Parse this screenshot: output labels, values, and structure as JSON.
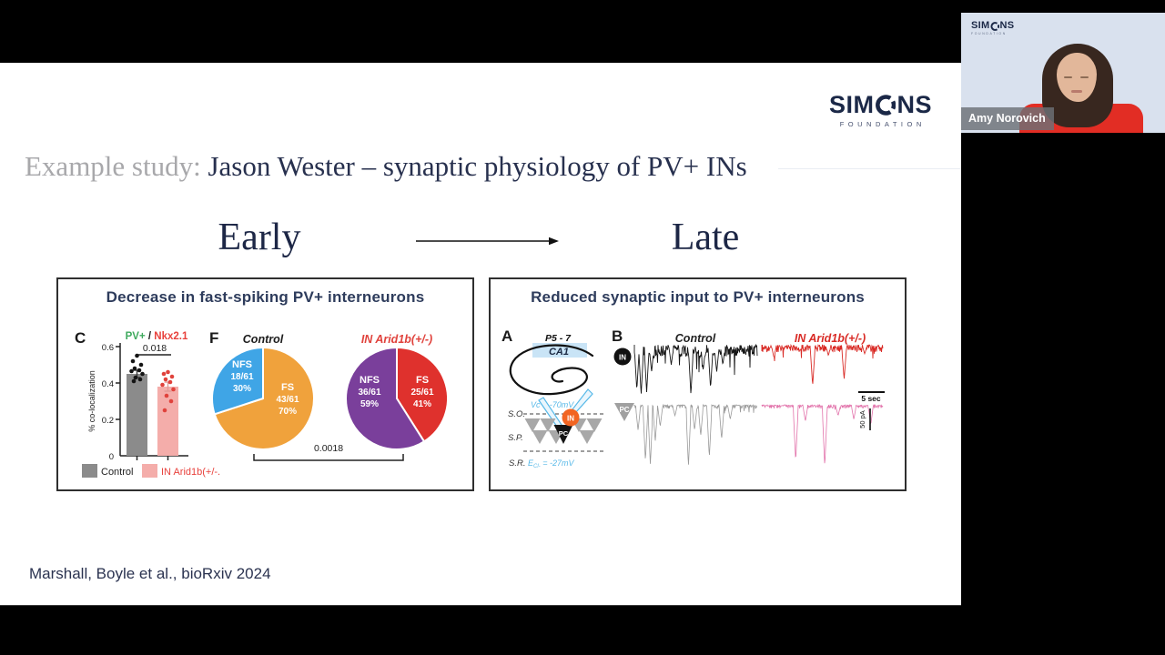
{
  "webcam": {
    "name": "Amy Norovich",
    "logo": {
      "left": "SIM",
      "right": "NS",
      "sub": "FOUNDATION"
    }
  },
  "slide": {
    "logo": {
      "left": "SIM",
      "right": "NS",
      "sub": "FOUNDATION"
    },
    "title": {
      "prefix": "Example study: ",
      "main": "Jason Wester – synaptic physiology of PV+ INs"
    },
    "timeline": {
      "early": "Early",
      "late": "Late"
    },
    "citation": "Marshall, Boyle et al., bioRxiv 2024",
    "left_panel": {
      "title": "Decrease in fast-spiking PV+ interneurons",
      "label_c": "C",
      "label_f": "F"
    },
    "right_panel": {
      "title": "Reduced synaptic input to PV+ interneurons",
      "label_a": "A",
      "label_b": "B",
      "age": "P5 - 7",
      "region": "CA1",
      "layer_so": "S.O.",
      "layer_sp": "S.P.",
      "layer_sr": "S.R.",
      "vc": "Vc = -70mV",
      "ecl_base": "E",
      "ecl_sub": "Cl-",
      "ecl_rest": " = -27mV",
      "in_label": "IN",
      "pc_label": "PC",
      "col_control": "Control",
      "col_arid": "IN Arid1b(+/-)",
      "scale_time": "5 sec",
      "scale_current": "50 pA"
    }
  },
  "chart_data": [
    {
      "id": "colocalization_bar",
      "type": "bar",
      "title_parts": {
        "green": "PV+",
        "sep": " / ",
        "red": "Nkx2.1"
      },
      "categories": [
        "Control",
        "IN Arid1b(+/-."
      ],
      "values": [
        0.45,
        0.38
      ],
      "points": [
        [
          0.55,
          0.52,
          0.5,
          0.48,
          0.47,
          0.465,
          0.45,
          0.43,
          0.42,
          0.41
        ],
        [
          0.46,
          0.45,
          0.435,
          0.42,
          0.405,
          0.39,
          0.365,
          0.33,
          0.3,
          0.25
        ]
      ],
      "sems": [
        0.02,
        0.025
      ],
      "ylabel": "% co-localization",
      "yticks": [
        "0",
        "0.2",
        "0.4",
        "0.6"
      ],
      "ylim": [
        0,
        0.6
      ],
      "p_value": "0.018",
      "bar_colors": [
        "#8b8b8b",
        "#f4adaa"
      ],
      "dot_colors": [
        "#141414",
        "#e0423c"
      ],
      "err_colors": [
        "#3c3c3c",
        "#e09a96"
      ]
    },
    {
      "id": "pie_control",
      "type": "pie",
      "title": "Control",
      "slices": [
        {
          "name": "FS",
          "count": "43/61",
          "pct": "70%",
          "value": 70,
          "color": "#f0a23c"
        },
        {
          "name": "NFS",
          "count": "18/61",
          "pct": "30%",
          "value": 30,
          "color": "#3fa5e6"
        }
      ]
    },
    {
      "id": "pie_arid",
      "type": "pie",
      "title": "IN Arid1b(+/-)",
      "p_value": "0.0018",
      "slices": [
        {
          "name": "FS",
          "count": "25/61",
          "pct": "41%",
          "value": 41,
          "color": "#df312d"
        },
        {
          "name": "NFS",
          "count": "36/61",
          "pct": "59%",
          "value": 59,
          "color": "#7a3f9b"
        }
      ]
    },
    {
      "id": "synaptic_traces",
      "type": "line",
      "rows": [
        {
          "label": "IN"
        },
        {
          "label": "PC"
        }
      ],
      "cols": [
        {
          "label": "Control"
        },
        {
          "label": "IN Arid1b(+/-)"
        }
      ],
      "traces": [
        {
          "row": 0,
          "col": 0,
          "color": "#161616",
          "width": 0.9,
          "noise": 13,
          "density": 0.9,
          "seed": 7,
          "spikes": [
            {
              "t": 0.02,
              "a": 50
            },
            {
              "t": 0.055,
              "a": 55
            },
            {
              "t": 0.1,
              "a": 52
            },
            {
              "t": 0.14,
              "a": 30
            },
            {
              "t": 0.3,
              "a": 22
            },
            {
              "t": 0.46,
              "a": 55
            },
            {
              "t": 0.56,
              "a": 28
            },
            {
              "t": 0.62,
              "a": 48
            },
            {
              "t": 0.67,
              "a": 30
            },
            {
              "t": 0.72,
              "a": 22
            }
          ]
        },
        {
          "row": 0,
          "col": 1,
          "color": "#d92b26",
          "width": 0.9,
          "noise": 8,
          "density": 0.8,
          "seed": 11,
          "spikes": [
            {
              "t": 0.1,
              "a": 14
            },
            {
              "t": 0.42,
              "a": 45
            },
            {
              "t": 0.55,
              "a": 12
            },
            {
              "t": 0.68,
              "a": 38
            },
            {
              "t": 0.85,
              "a": 10
            }
          ]
        },
        {
          "row": 1,
          "col": 0,
          "color": "#9a9a9a",
          "width": 0.8,
          "noise": 4,
          "density": 0.5,
          "seed": 23,
          "spikes": [
            {
              "t": 0.03,
              "a": 28
            },
            {
              "t": 0.09,
              "a": 62
            },
            {
              "t": 0.13,
              "a": 66
            },
            {
              "t": 0.17,
              "a": 40
            },
            {
              "t": 0.21,
              "a": 24
            },
            {
              "t": 0.33,
              "a": 12
            },
            {
              "t": 0.44,
              "a": 68
            },
            {
              "t": 0.49,
              "a": 28
            },
            {
              "t": 0.54,
              "a": 34
            },
            {
              "t": 0.61,
              "a": 58
            },
            {
              "t": 0.71,
              "a": 38
            },
            {
              "t": 0.78,
              "a": 16
            }
          ]
        },
        {
          "row": 1,
          "col": 1,
          "color": "#e273ab",
          "width": 0.8,
          "noise": 4,
          "density": 0.5,
          "seed": 31,
          "spikes": [
            {
              "t": 0.28,
              "a": 62
            },
            {
              "t": 0.36,
              "a": 18
            },
            {
              "t": 0.52,
              "a": 68
            },
            {
              "t": 0.63,
              "a": 12
            },
            {
              "t": 0.76,
              "a": 16
            },
            {
              "t": 0.9,
              "a": 22
            }
          ]
        }
      ]
    }
  ]
}
